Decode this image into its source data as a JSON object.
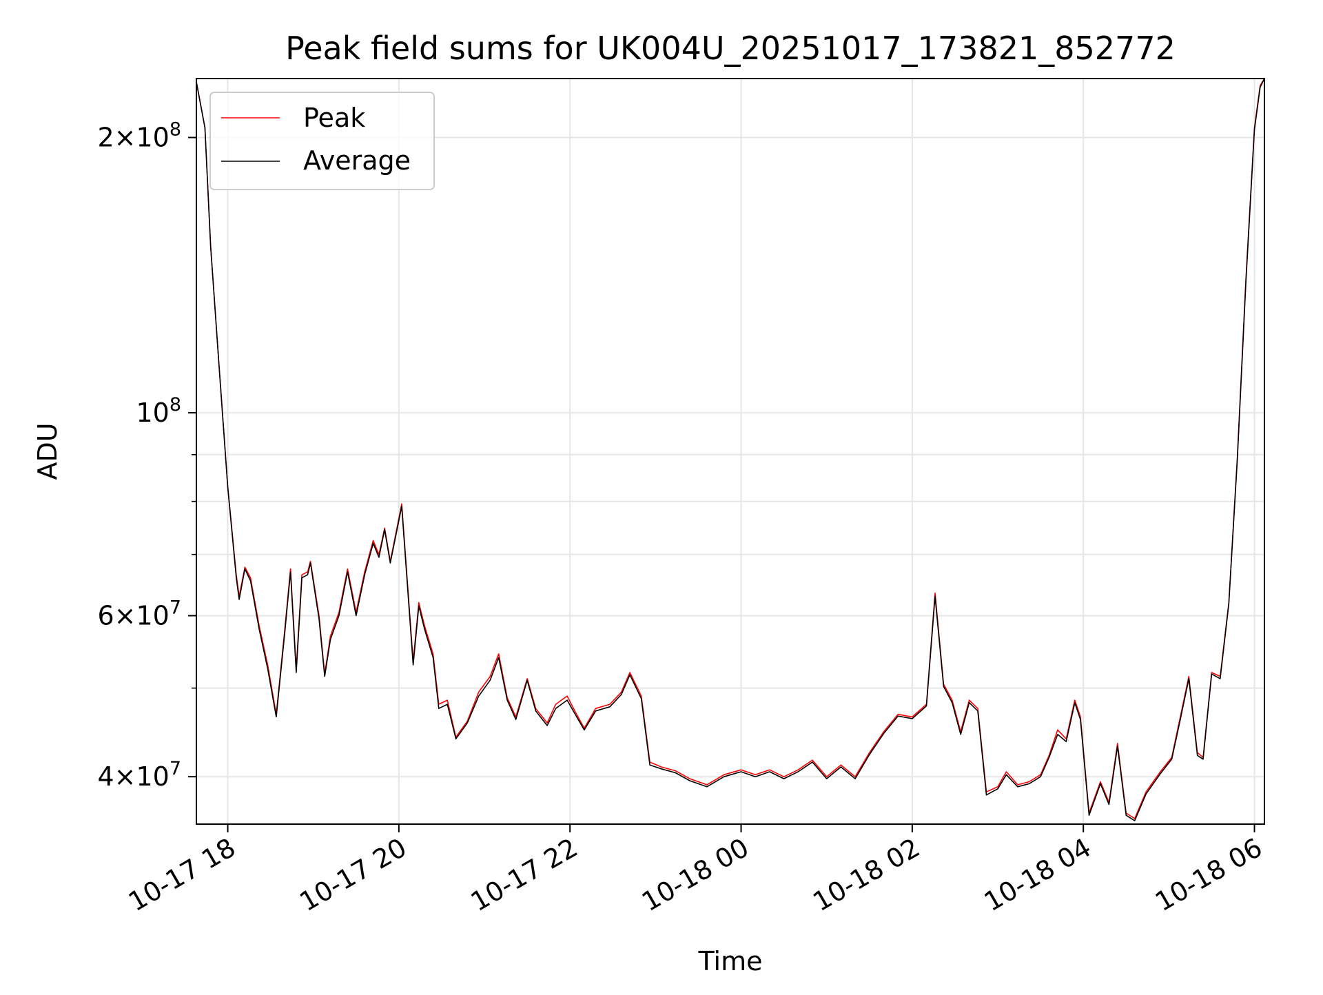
{
  "chart_data": {
    "type": "line",
    "title": "Peak field sums for UK004U_20251017_173821_852772",
    "xlabel": "Time",
    "ylabel": "ADU",
    "x_type": "time",
    "xlim": [
      "2025-10-17T17:38",
      "2025-10-18T06:07"
    ],
    "ylim": [
      35500000,
      232000000
    ],
    "y_scale": "log",
    "grid": true,
    "legend_position": "upper-left",
    "x_ticks": [
      {
        "label": "10-17 18",
        "value": "2025-10-17T18:00"
      },
      {
        "label": "10-17 20",
        "value": "2025-10-17T20:00"
      },
      {
        "label": "10-17 22",
        "value": "2025-10-17T22:00"
      },
      {
        "label": "10-18 00",
        "value": "2025-10-18T00:00"
      },
      {
        "label": "10-18 02",
        "value": "2025-10-18T02:00"
      },
      {
        "label": "10-18 04",
        "value": "2025-10-18T04:00"
      },
      {
        "label": "10-18 06",
        "value": "2025-10-18T06:00"
      }
    ],
    "y_ticks_major": [
      {
        "value": 40000000,
        "mantissa": "4",
        "base": "10",
        "exp": "7"
      },
      {
        "value": 60000000,
        "mantissa": "6",
        "base": "10",
        "exp": "7"
      },
      {
        "value": 100000000,
        "mantissa": "",
        "base": "10",
        "exp": "8"
      },
      {
        "value": 200000000,
        "mantissa": "2",
        "base": "10",
        "exp": "8"
      }
    ],
    "y_ticks_minor": [
      50000000,
      70000000,
      80000000,
      90000000
    ],
    "series": [
      {
        "name": "Peak",
        "color": "#ff0000",
        "points": [
          [
            "2025-10-17T17:38",
            230000000
          ],
          [
            "2025-10-17T17:44",
            205000000
          ],
          [
            "2025-10-17T17:48",
            152000000
          ],
          [
            "2025-10-17T17:54",
            112000000
          ],
          [
            "2025-10-17T18:00",
            83000000
          ],
          [
            "2025-10-17T18:06",
            66500000
          ],
          [
            "2025-10-17T18:08",
            63000000
          ],
          [
            "2025-10-17T18:12",
            67800000
          ],
          [
            "2025-10-17T18:16",
            66000000
          ],
          [
            "2025-10-17T18:22",
            58500000
          ],
          [
            "2025-10-17T18:28",
            53000000
          ],
          [
            "2025-10-17T18:34",
            46800000
          ],
          [
            "2025-10-17T18:40",
            58000000
          ],
          [
            "2025-10-17T18:44",
            67500000
          ],
          [
            "2025-10-17T18:48",
            52500000
          ],
          [
            "2025-10-17T18:52",
            66500000
          ],
          [
            "2025-10-17T18:56",
            67000000
          ],
          [
            "2025-10-17T18:58",
            68800000
          ],
          [
            "2025-10-17T19:04",
            60000000
          ],
          [
            "2025-10-17T19:08",
            51800000
          ],
          [
            "2025-10-17T19:12",
            57000000
          ],
          [
            "2025-10-17T19:18",
            60500000
          ],
          [
            "2025-10-17T19:24",
            67500000
          ],
          [
            "2025-10-17T19:30",
            60500000
          ],
          [
            "2025-10-17T19:36",
            67000000
          ],
          [
            "2025-10-17T19:42",
            72500000
          ],
          [
            "2025-10-17T19:46",
            70000000
          ],
          [
            "2025-10-17T19:50",
            74800000
          ],
          [
            "2025-10-17T19:54",
            68800000
          ],
          [
            "2025-10-17T20:02",
            79500000
          ],
          [
            "2025-10-17T20:10",
            53500000
          ],
          [
            "2025-10-17T20:14",
            62000000
          ],
          [
            "2025-10-17T20:18",
            58500000
          ],
          [
            "2025-10-17T20:24",
            54500000
          ],
          [
            "2025-10-17T20:28",
            48000000
          ],
          [
            "2025-10-17T20:34",
            48500000
          ],
          [
            "2025-10-17T20:40",
            44200000
          ],
          [
            "2025-10-17T20:48",
            46000000
          ],
          [
            "2025-10-17T20:56",
            49500000
          ],
          [
            "2025-10-17T21:04",
            51500000
          ],
          [
            "2025-10-17T21:10",
            54500000
          ],
          [
            "2025-10-17T21:16",
            48800000
          ],
          [
            "2025-10-17T21:22",
            46500000
          ],
          [
            "2025-10-17T21:30",
            51200000
          ],
          [
            "2025-10-17T21:36",
            47500000
          ],
          [
            "2025-10-17T21:44",
            45800000
          ],
          [
            "2025-10-17T21:50",
            48000000
          ],
          [
            "2025-10-17T21:58",
            49000000
          ],
          [
            "2025-10-17T22:04",
            47000000
          ],
          [
            "2025-10-17T22:10",
            45200000
          ],
          [
            "2025-10-17T22:18",
            47500000
          ],
          [
            "2025-10-17T22:28",
            48000000
          ],
          [
            "2025-10-17T22:36",
            49500000
          ],
          [
            "2025-10-17T22:42",
            52000000
          ],
          [
            "2025-10-17T22:50",
            49000000
          ],
          [
            "2025-10-17T22:56",
            41500000
          ],
          [
            "2025-10-17T23:04",
            41000000
          ],
          [
            "2025-10-17T23:14",
            40600000
          ],
          [
            "2025-10-17T23:24",
            39800000
          ],
          [
            "2025-10-17T23:36",
            39200000
          ],
          [
            "2025-10-17T23:48",
            40200000
          ],
          [
            "2025-10-18T00:00",
            40700000
          ],
          [
            "2025-10-18T00:10",
            40200000
          ],
          [
            "2025-10-18T00:20",
            40700000
          ],
          [
            "2025-10-18T00:30",
            40000000
          ],
          [
            "2025-10-18T00:40",
            40700000
          ],
          [
            "2025-10-18T00:50",
            41700000
          ],
          [
            "2025-10-18T01:00",
            40000000
          ],
          [
            "2025-10-18T01:10",
            41200000
          ],
          [
            "2025-10-18T01:20",
            40000000
          ],
          [
            "2025-10-18T01:30",
            42500000
          ],
          [
            "2025-10-18T01:40",
            44800000
          ],
          [
            "2025-10-18T01:50",
            46800000
          ],
          [
            "2025-10-18T02:00",
            46500000
          ],
          [
            "2025-10-18T02:10",
            48000000
          ],
          [
            "2025-10-18T02:16",
            63500000
          ],
          [
            "2025-10-18T02:22",
            50500000
          ],
          [
            "2025-10-18T02:28",
            48500000
          ],
          [
            "2025-10-18T02:34",
            44800000
          ],
          [
            "2025-10-18T02:40",
            48500000
          ],
          [
            "2025-10-18T02:46",
            47500000
          ],
          [
            "2025-10-18T02:52",
            38500000
          ],
          [
            "2025-10-18T03:00",
            39000000
          ],
          [
            "2025-10-18T03:06",
            40500000
          ],
          [
            "2025-10-18T03:14",
            39200000
          ],
          [
            "2025-10-18T03:22",
            39500000
          ],
          [
            "2025-10-18T03:30",
            40200000
          ],
          [
            "2025-10-18T03:36",
            42200000
          ],
          [
            "2025-10-18T03:42",
            45000000
          ],
          [
            "2025-10-18T03:48",
            44000000
          ],
          [
            "2025-10-18T03:54",
            48500000
          ],
          [
            "2025-10-18T03:58",
            46500000
          ],
          [
            "2025-10-18T04:04",
            36500000
          ],
          [
            "2025-10-18T04:12",
            39500000
          ],
          [
            "2025-10-18T04:18",
            37500000
          ],
          [
            "2025-10-18T04:24",
            43500000
          ],
          [
            "2025-10-18T04:30",
            36500000
          ],
          [
            "2025-10-18T04:36",
            36000000
          ],
          [
            "2025-10-18T04:44",
            38500000
          ],
          [
            "2025-10-18T04:54",
            40500000
          ],
          [
            "2025-10-18T05:02",
            42000000
          ],
          [
            "2025-10-18T05:08",
            46500000
          ],
          [
            "2025-10-18T05:14",
            51500000
          ],
          [
            "2025-10-18T05:20",
            42500000
          ],
          [
            "2025-10-18T05:24",
            42000000
          ],
          [
            "2025-10-18T05:30",
            52000000
          ],
          [
            "2025-10-18T05:36",
            51500000
          ],
          [
            "2025-10-18T05:42",
            62000000
          ],
          [
            "2025-10-18T05:48",
            89500000
          ],
          [
            "2025-10-18T05:54",
            140000000
          ],
          [
            "2025-10-18T06:00",
            205000000
          ],
          [
            "2025-10-18T06:04",
            228000000
          ],
          [
            "2025-10-18T06:07",
            232000000
          ]
        ]
      },
      {
        "name": "Average",
        "color": "#000000",
        "points": [
          [
            "2025-10-17T17:38",
            230000000
          ],
          [
            "2025-10-17T17:44",
            205000000
          ],
          [
            "2025-10-17T17:48",
            152000000
          ],
          [
            "2025-10-17T17:54",
            112000000
          ],
          [
            "2025-10-17T18:00",
            83000000
          ],
          [
            "2025-10-17T18:06",
            66000000
          ],
          [
            "2025-10-17T18:08",
            62500000
          ],
          [
            "2025-10-17T18:12",
            67500000
          ],
          [
            "2025-10-17T18:16",
            65500000
          ],
          [
            "2025-10-17T18:22",
            58000000
          ],
          [
            "2025-10-17T18:28",
            52500000
          ],
          [
            "2025-10-17T18:34",
            46500000
          ],
          [
            "2025-10-17T18:40",
            57500000
          ],
          [
            "2025-10-17T18:44",
            67000000
          ],
          [
            "2025-10-17T18:48",
            52000000
          ],
          [
            "2025-10-17T18:52",
            66000000
          ],
          [
            "2025-10-17T18:56",
            66500000
          ],
          [
            "2025-10-17T18:58",
            68500000
          ],
          [
            "2025-10-17T19:04",
            59500000
          ],
          [
            "2025-10-17T19:08",
            51500000
          ],
          [
            "2025-10-17T19:12",
            56500000
          ],
          [
            "2025-10-17T19:18",
            60000000
          ],
          [
            "2025-10-17T19:24",
            67000000
          ],
          [
            "2025-10-17T19:30",
            60000000
          ],
          [
            "2025-10-17T19:36",
            66500000
          ],
          [
            "2025-10-17T19:42",
            72000000
          ],
          [
            "2025-10-17T19:46",
            69500000
          ],
          [
            "2025-10-17T19:50",
            74500000
          ],
          [
            "2025-10-17T19:54",
            68500000
          ],
          [
            "2025-10-17T20:02",
            79000000
          ],
          [
            "2025-10-17T20:10",
            53000000
          ],
          [
            "2025-10-17T20:14",
            61500000
          ],
          [
            "2025-10-17T20:18",
            58000000
          ],
          [
            "2025-10-17T20:24",
            54000000
          ],
          [
            "2025-10-17T20:28",
            47500000
          ],
          [
            "2025-10-17T20:34",
            48000000
          ],
          [
            "2025-10-17T20:40",
            44000000
          ],
          [
            "2025-10-17T20:48",
            45800000
          ],
          [
            "2025-10-17T20:56",
            49000000
          ],
          [
            "2025-10-17T21:04",
            51000000
          ],
          [
            "2025-10-17T21:10",
            54000000
          ],
          [
            "2025-10-17T21:16",
            48500000
          ],
          [
            "2025-10-17T21:22",
            46200000
          ],
          [
            "2025-10-17T21:30",
            51000000
          ],
          [
            "2025-10-17T21:36",
            47200000
          ],
          [
            "2025-10-17T21:44",
            45500000
          ],
          [
            "2025-10-17T21:50",
            47500000
          ],
          [
            "2025-10-17T21:58",
            48500000
          ],
          [
            "2025-10-17T22:04",
            46700000
          ],
          [
            "2025-10-17T22:10",
            45000000
          ],
          [
            "2025-10-17T22:18",
            47200000
          ],
          [
            "2025-10-17T22:28",
            47700000
          ],
          [
            "2025-10-17T22:36",
            49200000
          ],
          [
            "2025-10-17T22:42",
            51700000
          ],
          [
            "2025-10-17T22:50",
            48700000
          ],
          [
            "2025-10-17T22:56",
            41200000
          ],
          [
            "2025-10-17T23:04",
            40800000
          ],
          [
            "2025-10-17T23:14",
            40400000
          ],
          [
            "2025-10-17T23:24",
            39600000
          ],
          [
            "2025-10-17T23:36",
            39000000
          ],
          [
            "2025-10-17T23:48",
            40000000
          ],
          [
            "2025-10-18T00:00",
            40500000
          ],
          [
            "2025-10-18T00:10",
            40000000
          ],
          [
            "2025-10-18T00:20",
            40500000
          ],
          [
            "2025-10-18T00:30",
            39800000
          ],
          [
            "2025-10-18T00:40",
            40500000
          ],
          [
            "2025-10-18T00:50",
            41500000
          ],
          [
            "2025-10-18T01:00",
            39800000
          ],
          [
            "2025-10-18T01:10",
            41000000
          ],
          [
            "2025-10-18T01:20",
            39800000
          ],
          [
            "2025-10-18T01:30",
            42300000
          ],
          [
            "2025-10-18T01:40",
            44600000
          ],
          [
            "2025-10-18T01:50",
            46600000
          ],
          [
            "2025-10-18T02:00",
            46300000
          ],
          [
            "2025-10-18T02:10",
            47800000
          ],
          [
            "2025-10-18T02:16",
            63000000
          ],
          [
            "2025-10-18T02:22",
            50200000
          ],
          [
            "2025-10-18T02:28",
            48200000
          ],
          [
            "2025-10-18T02:34",
            44500000
          ],
          [
            "2025-10-18T02:40",
            48200000
          ],
          [
            "2025-10-18T02:46",
            47200000
          ],
          [
            "2025-10-18T02:52",
            38200000
          ],
          [
            "2025-10-18T03:00",
            38800000
          ],
          [
            "2025-10-18T03:06",
            40200000
          ],
          [
            "2025-10-18T03:14",
            39000000
          ],
          [
            "2025-10-18T03:22",
            39300000
          ],
          [
            "2025-10-18T03:30",
            40000000
          ],
          [
            "2025-10-18T03:36",
            42000000
          ],
          [
            "2025-10-18T03:42",
            44500000
          ],
          [
            "2025-10-18T03:48",
            43700000
          ],
          [
            "2025-10-18T03:54",
            48200000
          ],
          [
            "2025-10-18T03:58",
            46200000
          ],
          [
            "2025-10-18T04:04",
            36300000
          ],
          [
            "2025-10-18T04:12",
            39300000
          ],
          [
            "2025-10-18T04:18",
            37300000
          ],
          [
            "2025-10-18T04:24",
            43200000
          ],
          [
            "2025-10-18T04:30",
            36300000
          ],
          [
            "2025-10-18T04:36",
            35800000
          ],
          [
            "2025-10-18T04:44",
            38300000
          ],
          [
            "2025-10-18T04:54",
            40300000
          ],
          [
            "2025-10-18T05:02",
            41800000
          ],
          [
            "2025-10-18T05:08",
            46200000
          ],
          [
            "2025-10-18T05:14",
            51200000
          ],
          [
            "2025-10-18T05:20",
            42200000
          ],
          [
            "2025-10-18T05:24",
            41800000
          ],
          [
            "2025-10-18T05:30",
            51800000
          ],
          [
            "2025-10-18T05:36",
            51200000
          ],
          [
            "2025-10-18T05:42",
            61800000
          ],
          [
            "2025-10-18T05:48",
            89000000
          ],
          [
            "2025-10-18T05:54",
            139000000
          ],
          [
            "2025-10-18T06:00",
            204000000
          ],
          [
            "2025-10-18T06:04",
            227000000
          ],
          [
            "2025-10-18T06:07",
            232000000
          ]
        ]
      }
    ]
  }
}
